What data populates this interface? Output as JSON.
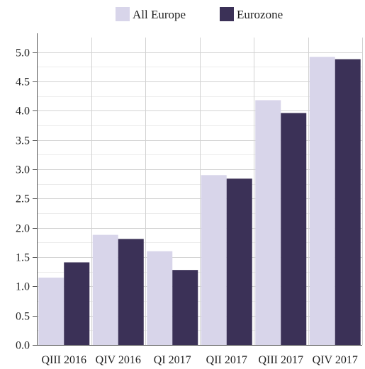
{
  "chart_data": {
    "type": "bar",
    "title": "",
    "xlabel": "",
    "ylabel": "",
    "categories": [
      "QIII 2016",
      "QIV 2016",
      "QI 2017",
      "QII 2017",
      "QIII 2017",
      "QIV 2017"
    ],
    "series": [
      {
        "name": "All Europe",
        "color": "#d8d5ea",
        "values": [
          1.15,
          1.88,
          1.6,
          2.9,
          4.18,
          4.92
        ]
      },
      {
        "name": "Eurozone",
        "color": "#3b3157",
        "values": [
          1.41,
          1.81,
          1.28,
          2.84,
          3.96,
          4.88
        ]
      }
    ],
    "ylim": [
      0,
      5.25
    ],
    "yticks": [
      0.0,
      0.5,
      1.0,
      1.5,
      2.0,
      2.5,
      3.0,
      3.5,
      4.0,
      4.5,
      5.0
    ],
    "ytick_labels": [
      "0.0",
      "0.5",
      "1.0",
      "1.5",
      "2.0",
      "2.5",
      "3.0",
      "3.5",
      "4.0",
      "4.5",
      "5.0"
    ],
    "grid": true,
    "legend_position": "top-center"
  }
}
